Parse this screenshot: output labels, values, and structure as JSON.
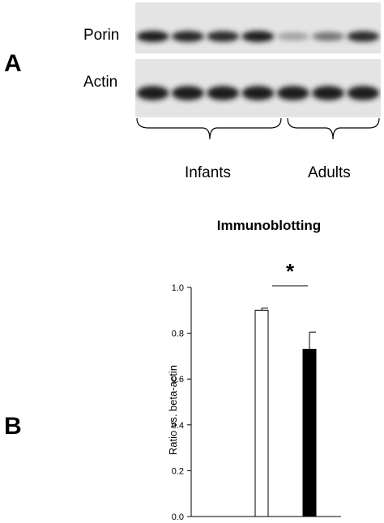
{
  "panels": {
    "a_label": "A",
    "b_label": "B"
  },
  "blot": {
    "rows": [
      {
        "label": "Porin",
        "band_intensities": [
          0.95,
          0.92,
          0.9,
          0.97,
          0.35,
          0.55,
          0.9
        ]
      },
      {
        "label": "Actin",
        "band_intensities": [
          0.95,
          0.95,
          0.95,
          0.95,
          0.95,
          0.95,
          0.95
        ]
      }
    ],
    "groups": [
      {
        "label": "Infants",
        "lanes": 4
      },
      {
        "label": "Adults",
        "lanes": 3
      }
    ]
  },
  "chart_data": {
    "type": "bar",
    "title": "Immunoblotting",
    "ylabel": "Ratio vs. beta-actin",
    "xlabel": "",
    "categories": [
      "",
      ""
    ],
    "values": [
      0.9,
      0.73
    ],
    "errors": [
      0.01,
      0.075
    ],
    "colors": [
      "#ffffff",
      "#000000"
    ],
    "ylim": [
      0,
      1.0
    ],
    "yticks": [
      "0.0",
      "0.2",
      "0.4",
      "0.6",
      "0.8",
      "1.0"
    ],
    "significance": "*",
    "grid": false
  }
}
